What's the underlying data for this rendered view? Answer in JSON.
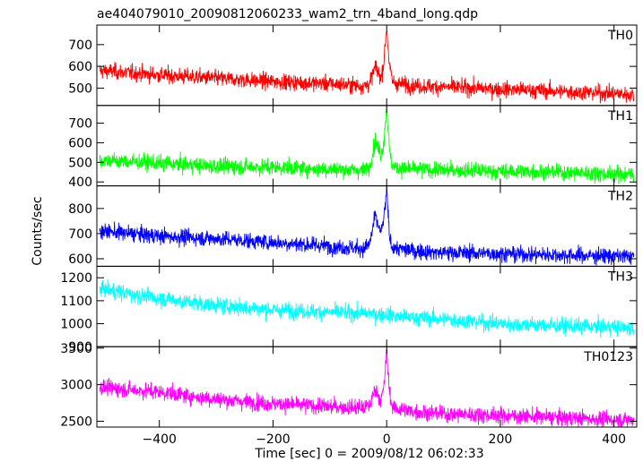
{
  "chart_data": {
    "type": "line",
    "title": "ae404079010_20090812060233_wam2_trn_4band_long.qdp",
    "xlabel": "Time [sec] 0 = 2009/08/12 06:02:33",
    "ylabel": "Counts/sec",
    "xlim": [
      -510,
      440
    ],
    "xticks": [
      -400,
      -200,
      0,
      200,
      400
    ],
    "grid": false,
    "series": [
      {
        "name": "TH0",
        "color": "#ff0000",
        "ylim": [
          420,
          790
        ],
        "yticks": [
          500,
          600,
          700
        ],
        "x": [
          -500,
          -400,
          -300,
          -200,
          -100,
          -40,
          -30,
          -20,
          -10,
          -5,
          0,
          5,
          10,
          20,
          50,
          100,
          200,
          300,
          400,
          430
        ],
        "values": [
          580,
          560,
          545,
          530,
          520,
          510,
          520,
          600,
          545,
          620,
          780,
          600,
          530,
          520,
          510,
          505,
          495,
          485,
          475,
          470
        ]
      },
      {
        "name": "TH1",
        "color": "#00ff00",
        "ylim": [
          380,
          790
        ],
        "yticks": [
          400,
          500,
          600,
          700
        ],
        "x": [
          -500,
          -400,
          -300,
          -200,
          -100,
          -40,
          -30,
          -20,
          -10,
          -5,
          0,
          5,
          10,
          20,
          50,
          100,
          200,
          300,
          400,
          430
        ],
        "values": [
          510,
          495,
          480,
          475,
          465,
          460,
          480,
          610,
          540,
          600,
          790,
          560,
          480,
          470,
          465,
          460,
          455,
          450,
          440,
          440
        ]
      },
      {
        "name": "TH2",
        "color": "#0000ff",
        "ylim": [
          570,
          890
        ],
        "yticks": [
          600,
          700,
          800
        ],
        "x": [
          -500,
          -400,
          -300,
          -200,
          -100,
          -40,
          -30,
          -20,
          -10,
          -5,
          0,
          5,
          10,
          20,
          50,
          100,
          200,
          300,
          400,
          430
        ],
        "values": [
          710,
          690,
          680,
          665,
          650,
          640,
          660,
          770,
          700,
          760,
          870,
          690,
          645,
          640,
          630,
          625,
          620,
          615,
          610,
          610
        ]
      },
      {
        "name": "TH3",
        "color": "#00ffff",
        "ylim": [
          900,
          1250
        ],
        "yticks": [
          900,
          1000,
          1100,
          1200
        ],
        "x": [
          -500,
          -400,
          -300,
          -200,
          -100,
          -40,
          -30,
          -20,
          -10,
          -5,
          0,
          5,
          10,
          20,
          50,
          100,
          200,
          300,
          400,
          430
        ],
        "values": [
          1150,
          1110,
          1080,
          1060,
          1050,
          1045,
          1045,
          1040,
          1040,
          1040,
          1040,
          1040,
          1035,
          1030,
          1025,
          1020,
          1000,
          990,
          985,
          980
        ]
      },
      {
        "name": "TH0123",
        "color": "#ff00ff",
        "ylim": [
          2420,
          3520
        ],
        "yticks": [
          2500,
          3000,
          3500
        ],
        "x": [
          -500,
          -400,
          -300,
          -200,
          -100,
          -40,
          -30,
          -20,
          -10,
          -5,
          0,
          5,
          10,
          20,
          50,
          100,
          200,
          300,
          400,
          430
        ],
        "values": [
          2960,
          2900,
          2800,
          2740,
          2700,
          2680,
          2720,
          2950,
          2780,
          2950,
          3450,
          2900,
          2690,
          2670,
          2630,
          2600,
          2580,
          2550,
          2520,
          2520
        ]
      }
    ]
  }
}
